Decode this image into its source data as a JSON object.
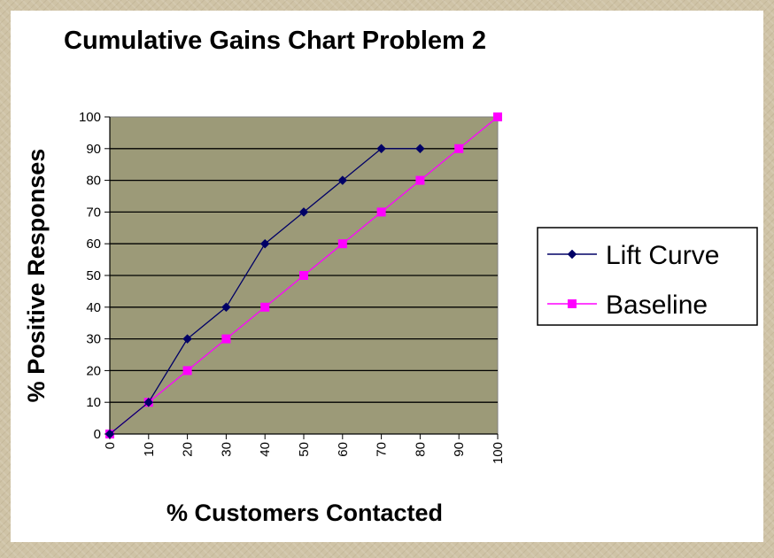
{
  "chart_data": {
    "type": "line",
    "title": "Cumulative Gains Chart Problem 2",
    "xlabel": "% Customers Contacted",
    "ylabel": "% Positive Responses",
    "x": [
      0,
      10,
      20,
      30,
      40,
      50,
      60,
      70,
      80,
      90,
      100
    ],
    "xlim": [
      0,
      100
    ],
    "ylim": [
      0,
      100
    ],
    "yticks": [
      0,
      10,
      20,
      30,
      40,
      50,
      60,
      70,
      80,
      90,
      100
    ],
    "grid": "horizontal",
    "legend_position": "right",
    "plot_background": "#9c9a78",
    "series": [
      {
        "name": "Lift Curve",
        "x": [
          0,
          10,
          20,
          30,
          40,
          50,
          60,
          70,
          80
        ],
        "values": [
          0,
          10,
          30,
          40,
          60,
          70,
          80,
          90,
          90
        ],
        "color": "#000066",
        "marker": "diamond"
      },
      {
        "name": "Baseline",
        "x": [
          0,
          10,
          20,
          30,
          40,
          50,
          60,
          70,
          80,
          90,
          100
        ],
        "values": [
          0,
          10,
          20,
          30,
          40,
          50,
          60,
          70,
          80,
          90,
          100
        ],
        "color": "#ff00ff",
        "marker": "square"
      }
    ]
  }
}
